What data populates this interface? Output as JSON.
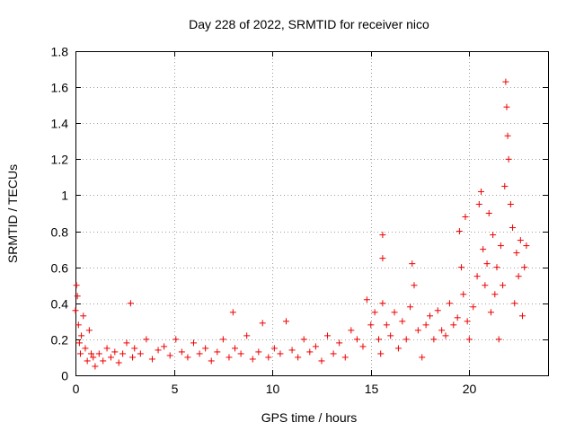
{
  "chart_data": {
    "type": "scatter",
    "title": "Day 228 of 2022, SRMTID for receiver nico",
    "xlabel": "GPS time / hours",
    "ylabel": "SRMTID / TECUs",
    "xlim": [
      0,
      24
    ],
    "ylim": [
      0,
      1.8
    ],
    "xticks": [
      0,
      5,
      10,
      15,
      20
    ],
    "xtick_labels": [
      "0",
      "5",
      "10",
      "15",
      "20"
    ],
    "yticks": [
      0,
      0.2,
      0.4,
      0.6,
      0.8,
      1.0,
      1.2,
      1.4,
      1.6,
      1.8
    ],
    "ytick_labels": [
      "0",
      "0.2",
      "0.4",
      "0.6",
      "0.8",
      "1",
      "1.2",
      "1.4",
      "1.6",
      "1.8"
    ],
    "grid": true,
    "marker": "+",
    "series": [
      {
        "name": "SRMTID",
        "color": "#ee0000",
        "x": [
          0.0,
          0.05,
          0.1,
          0.15,
          0.2,
          0.25,
          0.3,
          0.4,
          0.5,
          0.6,
          0.7,
          0.8,
          0.9,
          1.0,
          1.2,
          1.4,
          1.6,
          1.8,
          2.0,
          2.2,
          2.4,
          2.6,
          2.8,
          2.9,
          3.0,
          3.3,
          3.6,
          3.9,
          4.2,
          4.5,
          4.8,
          5.1,
          5.4,
          5.7,
          6.0,
          6.3,
          6.6,
          6.9,
          7.2,
          7.5,
          7.8,
          8.0,
          8.1,
          8.4,
          8.7,
          9.0,
          9.3,
          9.5,
          9.8,
          10.1,
          10.4,
          10.7,
          11.0,
          11.3,
          11.6,
          11.9,
          12.2,
          12.5,
          12.8,
          13.1,
          13.4,
          13.7,
          14.0,
          14.3,
          14.6,
          14.8,
          15.0,
          15.2,
          15.4,
          15.5,
          15.6,
          15.6,
          15.6,
          15.8,
          16.0,
          16.2,
          16.4,
          16.6,
          16.8,
          17.0,
          17.1,
          17.2,
          17.4,
          17.6,
          17.8,
          18.0,
          18.2,
          18.4,
          18.6,
          18.8,
          19.0,
          19.2,
          19.4,
          19.5,
          19.6,
          19.7,
          19.8,
          19.9,
          20.0,
          20.2,
          20.4,
          20.5,
          20.6,
          20.7,
          20.8,
          20.9,
          21.0,
          21.1,
          21.2,
          21.3,
          21.4,
          21.5,
          21.6,
          21.7,
          21.8,
          21.85,
          21.9,
          21.95,
          22.0,
          22.1,
          22.2,
          22.3,
          22.4,
          22.5,
          22.6,
          22.7,
          22.8,
          22.9
        ],
        "y": [
          0.36,
          0.5,
          0.44,
          0.28,
          0.18,
          0.12,
          0.22,
          0.33,
          0.15,
          0.08,
          0.25,
          0.12,
          0.1,
          0.05,
          0.12,
          0.08,
          0.15,
          0.1,
          0.13,
          0.07,
          0.12,
          0.18,
          0.4,
          0.1,
          0.15,
          0.12,
          0.2,
          0.09,
          0.14,
          0.16,
          0.11,
          0.2,
          0.13,
          0.1,
          0.18,
          0.12,
          0.15,
          0.08,
          0.13,
          0.2,
          0.1,
          0.35,
          0.15,
          0.12,
          0.22,
          0.09,
          0.13,
          0.29,
          0.1,
          0.15,
          0.12,
          0.3,
          0.14,
          0.1,
          0.2,
          0.13,
          0.16,
          0.08,
          0.22,
          0.12,
          0.18,
          0.1,
          0.25,
          0.2,
          0.16,
          0.42,
          0.28,
          0.35,
          0.2,
          0.12,
          0.78,
          0.65,
          0.4,
          0.28,
          0.22,
          0.35,
          0.15,
          0.3,
          0.2,
          0.38,
          0.62,
          0.5,
          0.25,
          0.1,
          0.28,
          0.33,
          0.2,
          0.36,
          0.25,
          0.22,
          0.4,
          0.28,
          0.32,
          0.8,
          0.6,
          0.45,
          0.88,
          0.3,
          0.2,
          0.38,
          0.55,
          0.95,
          1.02,
          0.7,
          0.5,
          0.62,
          0.9,
          0.35,
          0.78,
          0.45,
          0.6,
          0.2,
          0.72,
          0.5,
          1.05,
          1.63,
          1.49,
          1.33,
          1.2,
          0.95,
          0.82,
          0.4,
          0.68,
          0.55,
          0.75,
          0.33,
          0.6,
          0.72
        ]
      }
    ]
  }
}
